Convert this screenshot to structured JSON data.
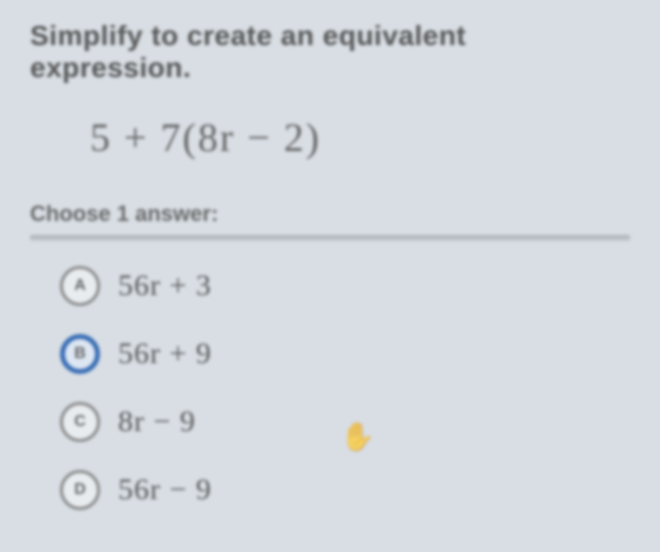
{
  "prompt": "Simplify to create an equivalent expression.",
  "expression": "5 + 7(8r − 2)",
  "choose_label": "Choose 1 answer:",
  "options": [
    {
      "letter": "A",
      "text": "56r + 3",
      "selected": false
    },
    {
      "letter": "B",
      "text": "56r + 9",
      "selected": true
    },
    {
      "letter": "C",
      "text": "8r − 9",
      "selected": false
    },
    {
      "letter": "D",
      "text": "56r − 9",
      "selected": false
    }
  ],
  "colors": {
    "background": "#d8dee4",
    "text": "#5a5a5a",
    "radio_border": "#888888",
    "radio_selected": "#3b6fb5",
    "divider": "#aab0b6"
  }
}
